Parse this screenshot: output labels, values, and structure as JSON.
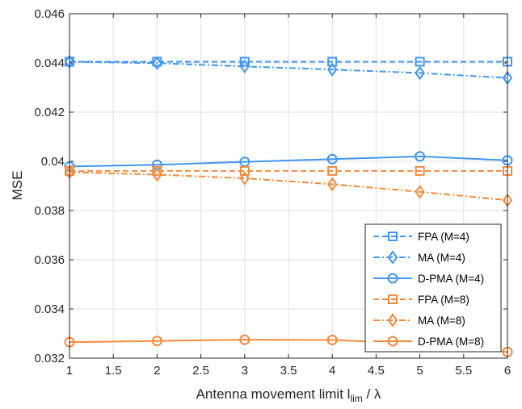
{
  "chart_data": {
    "type": "line",
    "xlabel": "Antenna movement limit l",
    "xlabel_sub": "lim",
    "xlabel_tail": " / λ",
    "ylabel": "MSE",
    "xlim": [
      1,
      6
    ],
    "ylim": [
      0.032,
      0.046
    ],
    "xticks": [
      1,
      1.5,
      2,
      2.5,
      3,
      3.5,
      4,
      4.5,
      5,
      5.5,
      6
    ],
    "xtick_labels": [
      "1",
      "1.5",
      "2",
      "2.5",
      "3",
      "3.5",
      "4",
      "4.5",
      "5",
      "5.5",
      "6"
    ],
    "yticks": [
      0.032,
      0.034,
      0.036,
      0.038,
      0.04,
      0.042,
      0.044,
      0.046
    ],
    "ytick_labels": [
      "0.032",
      "0.034",
      "0.036",
      "0.038",
      "0.04",
      "0.042",
      "0.044",
      "0.046"
    ],
    "grid": true,
    "legend_position": "bottom-right",
    "x": [
      1,
      2,
      3,
      4,
      5,
      6
    ],
    "series": [
      {
        "name": "FPA (M=4)",
        "values": [
          0.04405,
          0.04405,
          0.04405,
          0.04405,
          0.04405,
          0.04405
        ],
        "color": "#4297f0",
        "dash": "dashed",
        "marker": "square"
      },
      {
        "name": "MA (M=4)",
        "values": [
          0.04405,
          0.04399,
          0.04386,
          0.04373,
          0.04359,
          0.04339
        ],
        "color": "#4297f0",
        "dash": "dashdot",
        "marker": "diamond"
      },
      {
        "name": "D-PMA (M=4)",
        "values": [
          0.03979,
          0.03986,
          0.03998,
          0.04009,
          0.0402,
          0.04004
        ],
        "color": "#4297f0",
        "dash": "solid",
        "marker": "circle"
      },
      {
        "name": "FPA (M=8)",
        "values": [
          0.03961,
          0.03961,
          0.03961,
          0.03961,
          0.03961,
          0.03961
        ],
        "color": "#f58a3c",
        "dash": "dashed",
        "marker": "square"
      },
      {
        "name": "MA (M=8)",
        "values": [
          0.03956,
          0.03946,
          0.03931,
          0.03907,
          0.03876,
          0.03842
        ],
        "color": "#f58a3c",
        "dash": "dashdot",
        "marker": "diamond"
      },
      {
        "name": "D-PMA (M=8)",
        "values": [
          0.03265,
          0.0327,
          0.03275,
          0.03274,
          0.03259,
          0.03225
        ],
        "color": "#f58a3c",
        "dash": "solid",
        "marker": "circle"
      }
    ]
  }
}
